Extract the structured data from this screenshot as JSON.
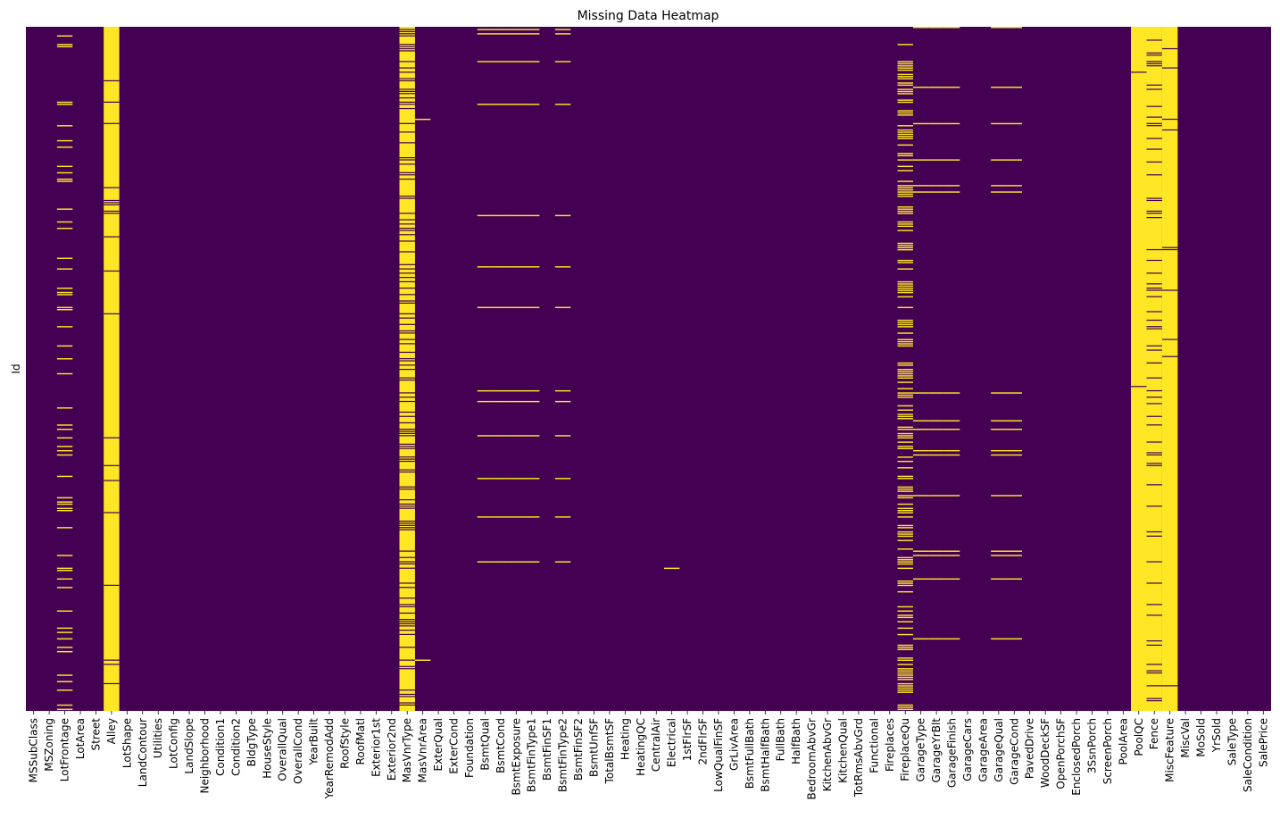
{
  "chart_data": {
    "type": "heatmap",
    "title": "Missing Data Heatmap",
    "ylabel": "Id",
    "xlabel": "",
    "colormap": {
      "present": "#440154",
      "missing": "#fde725"
    },
    "n_rows": 1460,
    "categories": [
      "MSSubClass",
      "MSZoning",
      "LotFrontage",
      "LotArea",
      "Street",
      "Alley",
      "LotShape",
      "LandContour",
      "Utilities",
      "LotConfig",
      "LandSlope",
      "Neighborhood",
      "Condition1",
      "Condition2",
      "BldgType",
      "HouseStyle",
      "OverallQual",
      "OverallCond",
      "YearBuilt",
      "YearRemodAdd",
      "RoofStyle",
      "RoofMatl",
      "Exterior1st",
      "Exterior2nd",
      "MasVnrType",
      "MasVnrArea",
      "ExterQual",
      "ExterCond",
      "Foundation",
      "BsmtQual",
      "BsmtCond",
      "BsmtExposure",
      "BsmtFinType1",
      "BsmtFinSF1",
      "BsmtFinType2",
      "BsmtFinSF2",
      "BsmtUnfSF",
      "TotalBsmtSF",
      "Heating",
      "HeatingQC",
      "CentralAir",
      "Electrical",
      "1stFlrSF",
      "2ndFlrSF",
      "LowQualFinSF",
      "GrLivArea",
      "BsmtFullBath",
      "BsmtHalfBath",
      "FullBath",
      "HalfBath",
      "BedroomAbvGr",
      "KitchenAbvGr",
      "KitchenQual",
      "TotRmsAbvGrd",
      "Functional",
      "Fireplaces",
      "FireplaceQu",
      "GarageType",
      "GarageYrBlt",
      "GarageFinish",
      "GarageCars",
      "GarageArea",
      "GarageQual",
      "GarageCond",
      "PavedDrive",
      "WoodDeckSF",
      "OpenPorchSF",
      "EnclosedPorch",
      "3SsnPorch",
      "ScreenPorch",
      "PoolArea",
      "PoolQC",
      "Fence",
      "MiscFeature",
      "MiscVal",
      "MoSold",
      "YrSold",
      "SaleType",
      "SaleCondition",
      "SalePrice"
    ],
    "missing_fraction": {
      "LotFrontage": 0.18,
      "Alley": 0.94,
      "MasVnrType": 0.6,
      "MasVnrArea": 0.01,
      "BsmtQual": 0.03,
      "BsmtCond": 0.03,
      "BsmtExposure": 0.03,
      "BsmtFinType1": 0.03,
      "BsmtFinType2": 0.03,
      "Electrical": 0.001,
      "FireplaceQu": 0.47,
      "GarageType": 0.06,
      "GarageYrBlt": 0.06,
      "GarageFinish": 0.06,
      "GarageQual": 0.06,
      "GarageCond": 0.06,
      "PoolQC": 0.995,
      "Fence": 0.81,
      "MiscFeature": 0.96
    }
  }
}
